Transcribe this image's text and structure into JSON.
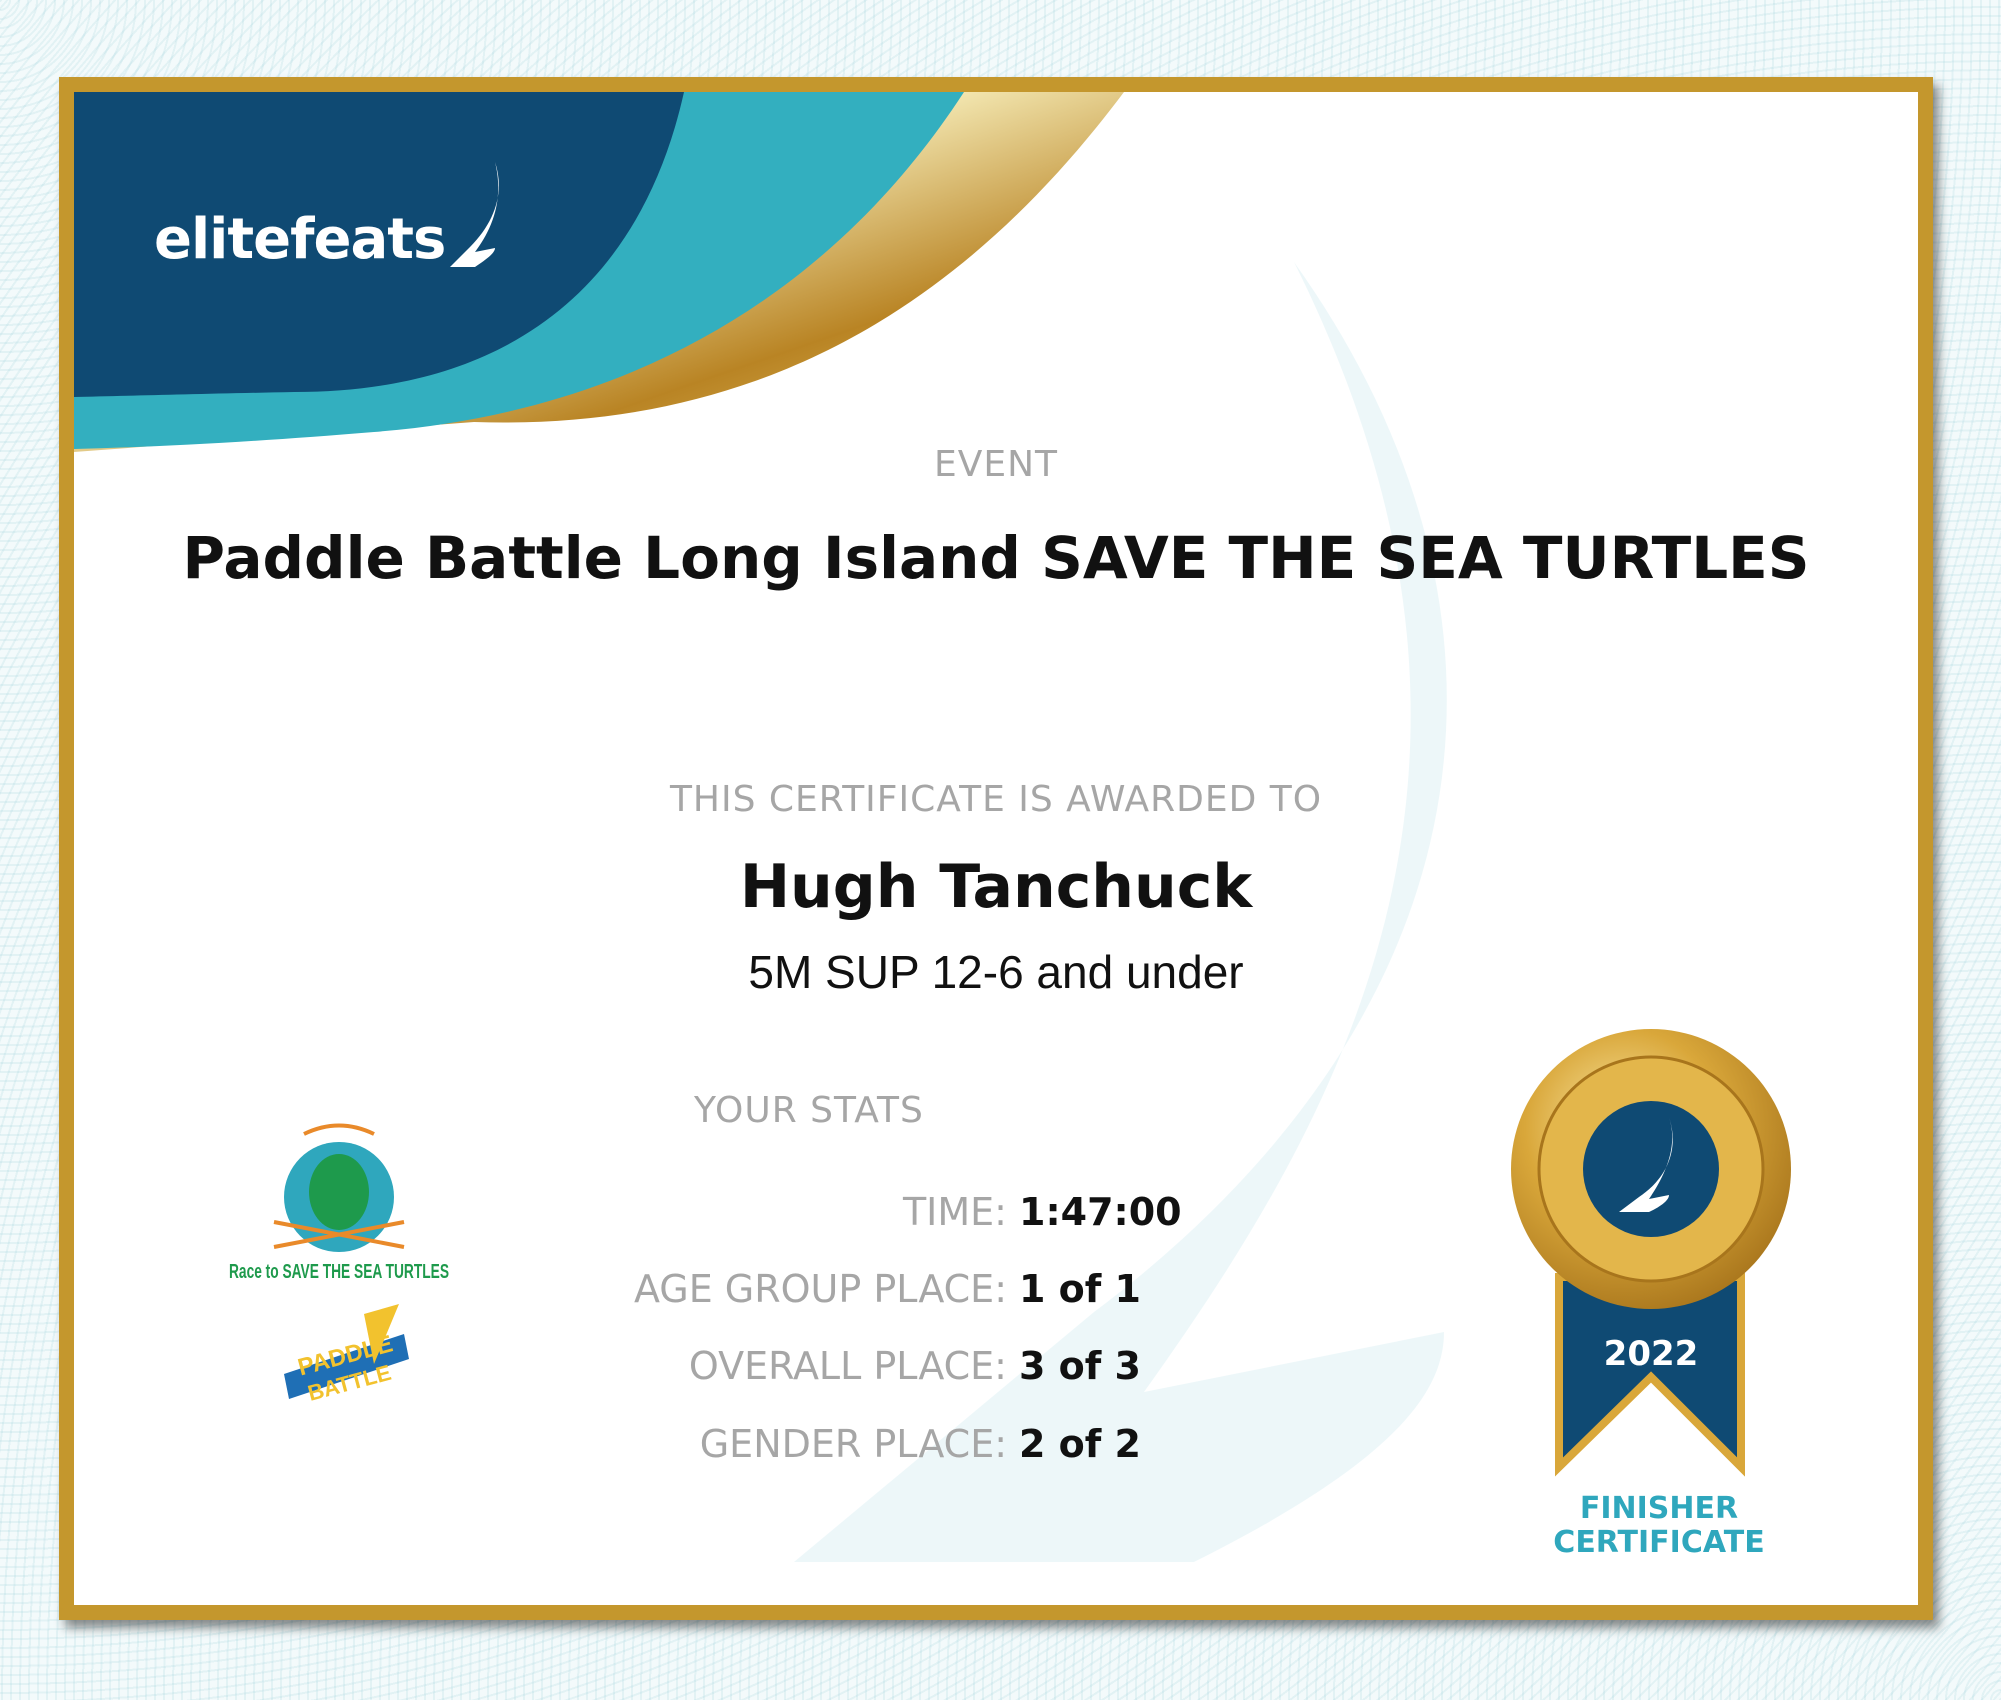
{
  "brand": {
    "logo_text": "elitefeats",
    "colors": {
      "navy": "#0f4a73",
      "teal": "#33afbf",
      "gold": "#c4972d"
    }
  },
  "event": {
    "label": "EVENT",
    "name": "Paddle Battle Long Island SAVE THE SEA TURTLES"
  },
  "award": {
    "label": "THIS CERTIFICATE IS AWARDED TO",
    "name": "Hugh Tanchuck",
    "category": "5M SUP 12-6 and under"
  },
  "stats": {
    "label": "YOUR STATS",
    "rows": [
      {
        "key": "TIME:",
        "value": "1:47:00"
      },
      {
        "key": "AGE GROUP PLACE:",
        "value": "1 of 1"
      },
      {
        "key": "OVERALL PLACE:",
        "value": "3 of 3"
      },
      {
        "key": "GENDER PLACE:",
        "value": "2 of 2"
      }
    ]
  },
  "sponsor_logos": {
    "turtle_logo_text": "Race to SAVE THE SEA TURTLES",
    "paddle_logo_text": "PADDLE BATTLE"
  },
  "medal": {
    "year": "2022",
    "line1": "FINISHER",
    "line2": "CERTIFICATE"
  }
}
